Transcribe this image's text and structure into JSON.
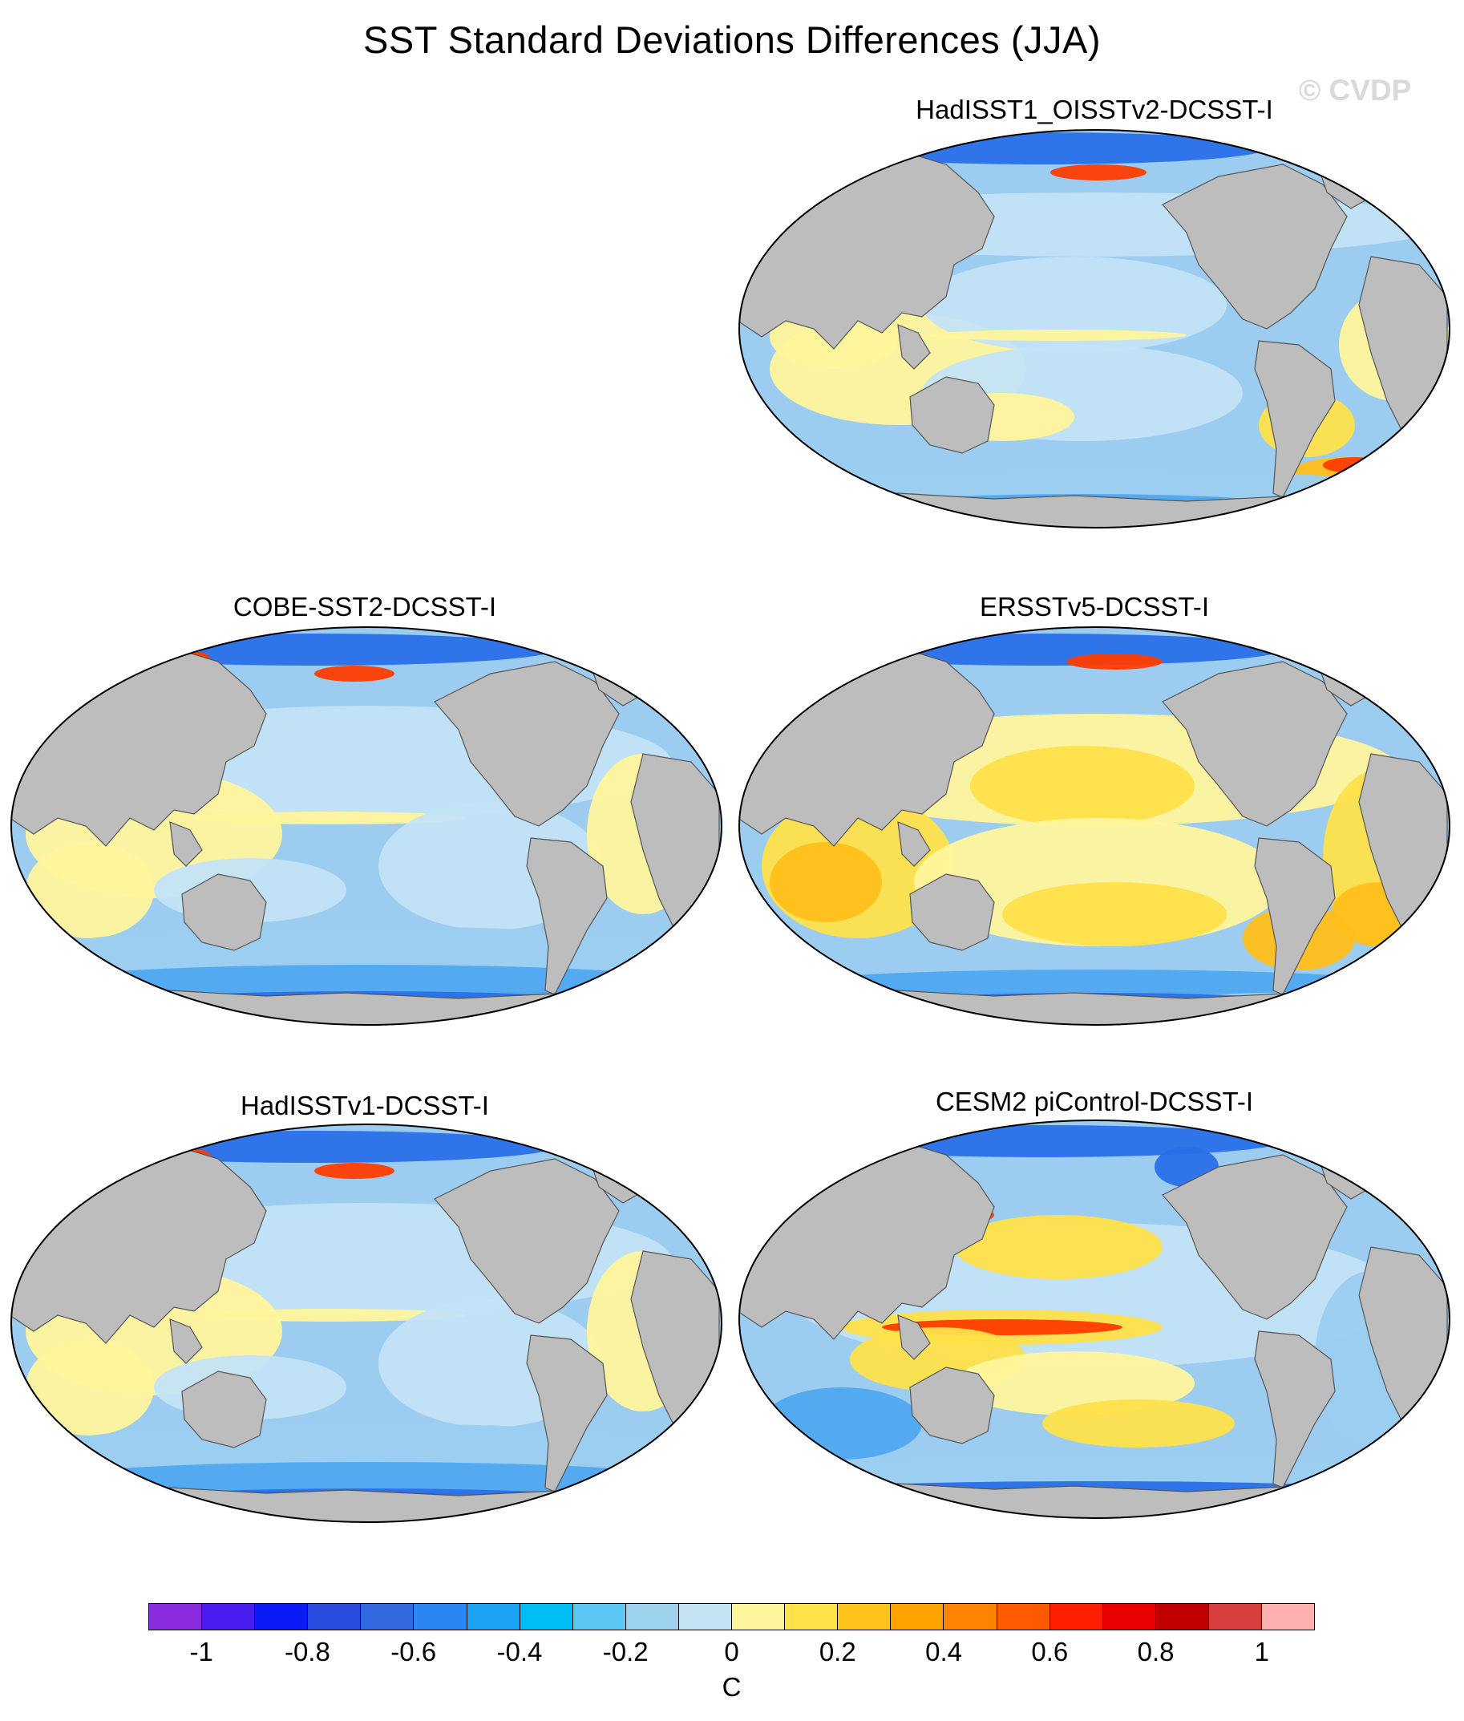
{
  "title": "SST Standard Deviations Differences (JJA)",
  "watermark": "© CVDP",
  "panels": [
    {
      "label": "HadISST1_OISSTv2-DCSST-I",
      "style": "mixed"
    },
    {
      "label": "COBE-SST2-DCSST-I",
      "style": "cool"
    },
    {
      "label": "ERSSTv5-DCSST-I",
      "style": "warm"
    },
    {
      "label": "HadISSTv1-DCSST-I",
      "style": "cool"
    },
    {
      "label": "CESM2 piControl-DCSST-I",
      "style": "enso"
    }
  ],
  "colorbar": {
    "unit": "C",
    "tick_labels": [
      "-1",
      "-0.8",
      "-0.6",
      "-0.4",
      "-0.2",
      "0",
      "0.2",
      "0.4",
      "0.6",
      "0.8",
      "1"
    ],
    "colors": [
      "#8a2be2",
      "#4b1cf0",
      "#0b1bf5",
      "#2a4de0",
      "#3268e0",
      "#2a86f2",
      "#1aa2f5",
      "#00bef5",
      "#5ac8f5",
      "#9dd2ef",
      "#c4e3f5",
      "#fff59e",
      "#ffe14a",
      "#ffc31a",
      "#ffa300",
      "#ff8200",
      "#ff5a00",
      "#ff1e00",
      "#e80000",
      "#c00000",
      "#d84040",
      "#ffb0b0"
    ]
  }
}
